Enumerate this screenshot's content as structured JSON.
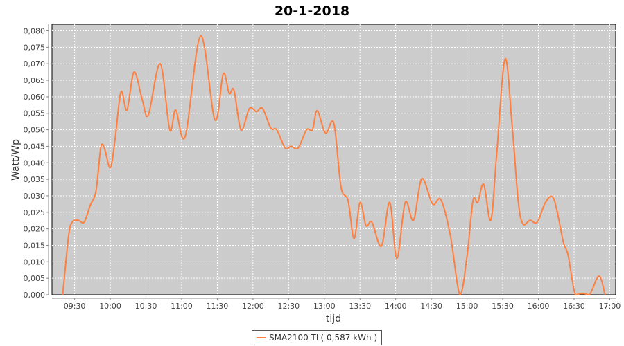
{
  "chart_data": {
    "type": "line",
    "title": "20-1-2018",
    "xlabel": "tijd",
    "ylabel": "Watt/Wp",
    "xlim": [
      "09:11",
      "17:05"
    ],
    "ylim": [
      0,
      0.082
    ],
    "grid": true,
    "legend_placement": "bottom",
    "x_ticks": [
      "09:30",
      "10:00",
      "10:30",
      "11:00",
      "11:30",
      "12:00",
      "12:30",
      "13:00",
      "13:30",
      "14:00",
      "14:30",
      "15:00",
      "15:30",
      "16:00",
      "16:30",
      "17:00"
    ],
    "y_ticks": [
      0,
      0.005,
      0.01,
      0.015,
      0.02,
      0.025,
      0.03,
      0.035,
      0.04,
      0.045,
      0.05,
      0.055,
      0.06,
      0.065,
      0.07,
      0.075,
      0.08
    ],
    "y_tick_labels": [
      "0,000",
      "0,005",
      "0,010",
      "0,015",
      "0,020",
      "0,025",
      "0,030",
      "0,035",
      "0,040",
      "0,045",
      "0,050",
      "0,055",
      "0,060",
      "0,065",
      "0,070",
      "0,075",
      "0,080"
    ],
    "colors": {
      "series": "#ff7f3f",
      "plot_background": "#cccccc",
      "grid": "#ffffff"
    },
    "series": [
      {
        "name": "SMA2100 TL( 0,587 kWh )",
        "x": [
          "09:20",
          "09:25",
          "09:28",
          "09:33",
          "09:38",
          "09:43",
          "09:48",
          "09:52",
          "09:55",
          "10:00",
          "10:04",
          "10:09",
          "10:14",
          "10:20",
          "10:27",
          "10:32",
          "10:42",
          "10:50",
          "10:55",
          "11:03",
          "11:16",
          "11:28",
          "11:35",
          "11:40",
          "11:44",
          "11:50",
          "11:57",
          "12:03",
          "12:08",
          "12:15",
          "12:20",
          "12:27",
          "12:32",
          "12:38",
          "12:45",
          "12:50",
          "12:54",
          "13:01",
          "13:08",
          "13:14",
          "13:20",
          "13:25",
          "13:30",
          "13:35",
          "13:40",
          "13:48",
          "13:55",
          "14:01",
          "14:08",
          "14:15",
          "14:22",
          "14:31",
          "14:38",
          "14:46",
          "14:54",
          "15:00",
          "15:05",
          "15:09",
          "15:14",
          "15:20",
          "15:25",
          "15:32",
          "15:38",
          "15:43",
          "15:47",
          "15:53",
          "15:59",
          "16:06",
          "16:13",
          "16:21",
          "16:25",
          "16:31",
          "16:37",
          "16:43",
          "16:51",
          "16:56"
        ],
        "values": [
          0,
          0.018,
          0.022,
          0.0226,
          0.022,
          0.027,
          0.0315,
          0.0445,
          0.0445,
          0.0385,
          0.047,
          0.0615,
          0.056,
          0.0675,
          0.059,
          0.0545,
          0.07,
          0.05,
          0.056,
          0.048,
          0.0785,
          0.053,
          0.067,
          0.061,
          0.062,
          0.05,
          0.0565,
          0.0555,
          0.0565,
          0.0505,
          0.05,
          0.0445,
          0.045,
          0.0445,
          0.05,
          0.05,
          0.0558,
          0.049,
          0.052,
          0.0327,
          0.0285,
          0.017,
          0.028,
          0.021,
          0.022,
          0.0148,
          0.028,
          0.011,
          0.028,
          0.0226,
          0.0352,
          0.0275,
          0.0288,
          0.018,
          0,
          0.0117,
          0.0285,
          0.028,
          0.0335,
          0.0226,
          0.043,
          0.0715,
          0.051,
          0.0285,
          0.0215,
          0.0226,
          0.022,
          0.028,
          0.029,
          0.016,
          0.012,
          0,
          0.0004,
          0,
          0.0057,
          0
        ]
      }
    ]
  }
}
